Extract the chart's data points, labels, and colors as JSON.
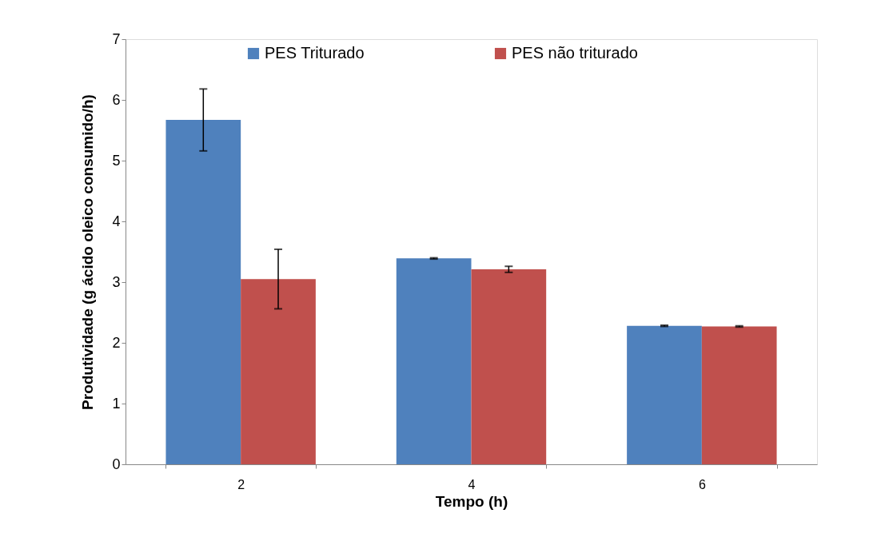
{
  "chart_data": {
    "type": "bar",
    "xlabel": "Tempo (h)",
    "ylabel": "Produtividade (g ácido oleico consumido/h)",
    "categories": [
      "2",
      "4",
      "6"
    ],
    "series": [
      {
        "name": "PES Triturado",
        "color": "#4f81bd",
        "values": [
          5.67,
          3.39,
          2.28
        ],
        "errors": [
          0.51,
          0.01,
          0.01
        ]
      },
      {
        "name": "PES não triturado",
        "color": "#c0504d",
        "values": [
          3.05,
          3.21,
          2.27
        ],
        "errors": [
          0.49,
          0.05,
          0.01
        ]
      }
    ],
    "ylim": [
      0,
      7
    ],
    "yticks": [
      0,
      1,
      2,
      3,
      4,
      5,
      6,
      7
    ],
    "grid": false,
    "legend": "top"
  }
}
